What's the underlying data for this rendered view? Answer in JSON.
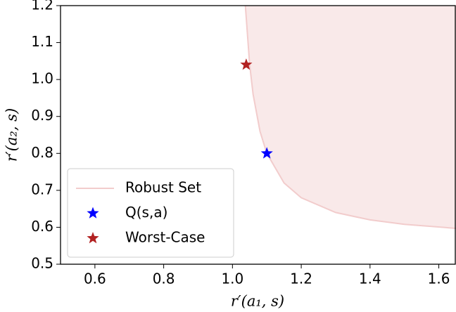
{
  "chart_data": {
    "type": "scatter",
    "xlabel": "r′(a₁, s)",
    "ylabel": "r′(a₂, s)",
    "xlim": [
      0.5,
      1.65
    ],
    "ylim": [
      0.5,
      1.2
    ],
    "xticks": [
      0.6,
      0.8,
      {
        "value": 1.0,
        "label": "1.0"
      },
      1.2,
      1.4,
      1.6
    ],
    "yticks": [
      0.5,
      0.6,
      0.7,
      0.8,
      0.9,
      {
        "value": 1.0,
        "label": "1.0"
      },
      1.1,
      1.2
    ],
    "legend": "lower left",
    "series": [
      {
        "name": "Robust Set",
        "type": "area",
        "color": "#f9e9e9",
        "edge_color": "#f2cccc",
        "x": [
          1.0375,
          1.05,
          1.06,
          1.08,
          1.1,
          1.15,
          1.2,
          1.3,
          1.4,
          1.5,
          1.65
        ],
        "values": [
          1.2,
          1.04,
          0.96,
          0.86,
          0.8,
          0.72,
          0.68,
          0.64,
          0.62,
          0.608,
          0.597
        ]
      },
      {
        "name": "Q(s,a)",
        "type": "star",
        "color": "#0000ff",
        "x": [
          1.1
        ],
        "values": [
          0.8
        ]
      },
      {
        "name": "Worst-Case",
        "type": "star",
        "color": "#b22222",
        "x": [
          1.04
        ],
        "values": [
          1.04
        ]
      }
    ]
  }
}
